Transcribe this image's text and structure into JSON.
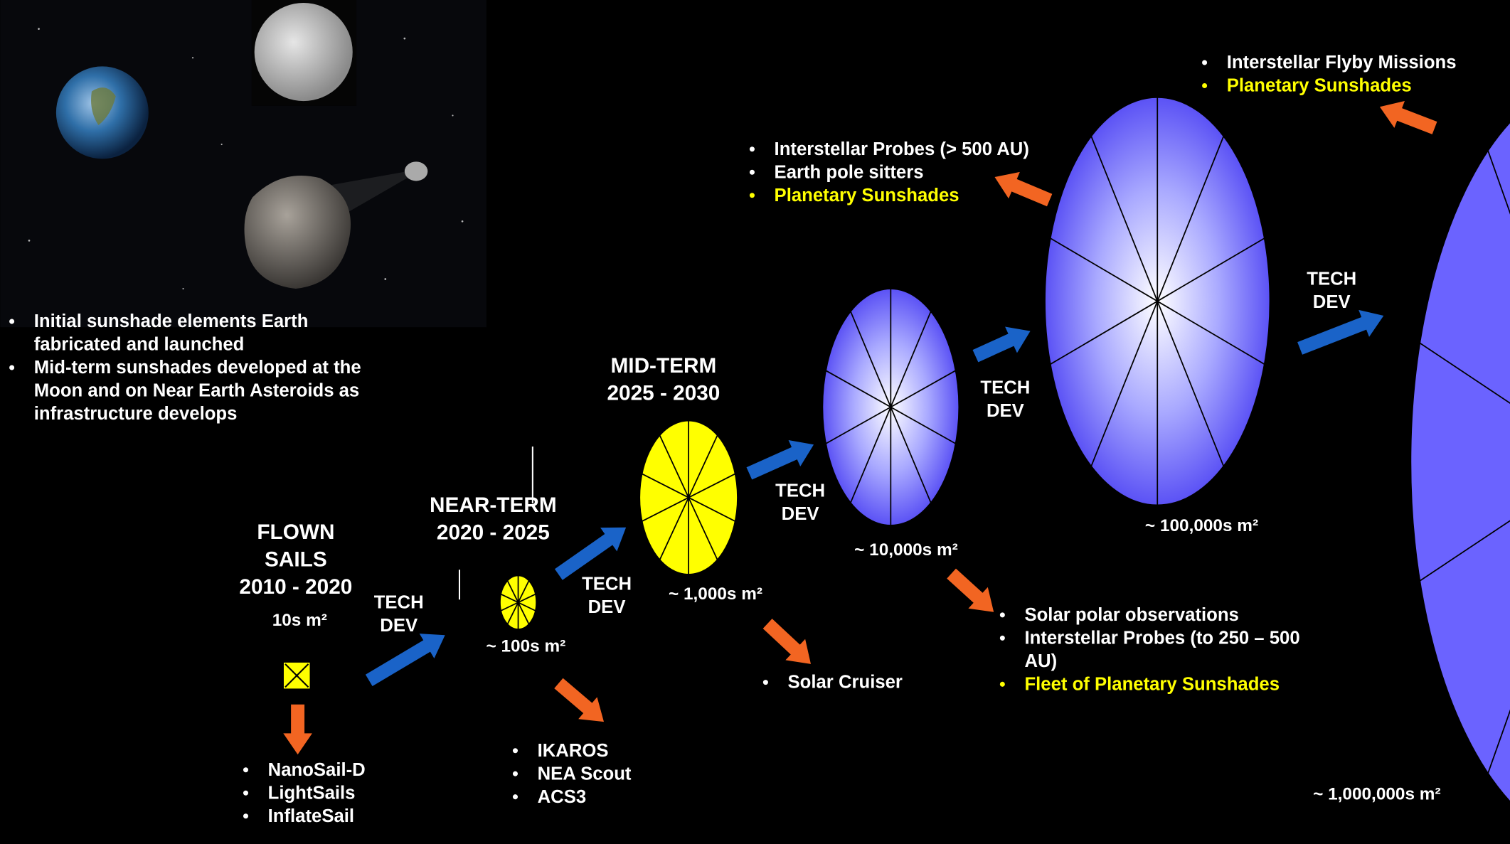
{
  "intro": {
    "items": [
      {
        "lines": [
          "Initial sunshade elements Earth",
          "fabricated and launched"
        ]
      },
      {
        "lines": [
          "Mid-term sunshades developed at the",
          "Moon and on Near Earth Asteroids as",
          "infrastructure develops"
        ]
      }
    ]
  },
  "stages": [
    {
      "heading": [
        "FLOWN",
        "SAILS",
        "2010 - 2020"
      ],
      "area": "10s m²",
      "missions": [
        {
          "lines": [
            "NanoSail-D"
          ]
        },
        {
          "lines": [
            "LightSails"
          ]
        },
        {
          "lines": [
            "InflateSail"
          ]
        }
      ]
    },
    {
      "heading": [
        "NEAR-TERM",
        "2020 - 2025"
      ],
      "area": "~ 100s m²",
      "missions": [
        {
          "lines": [
            "IKAROS"
          ]
        },
        {
          "lines": [
            "NEA Scout"
          ]
        },
        {
          "lines": [
            "ACS3"
          ]
        }
      ]
    },
    {
      "heading": [
        "MID-TERM",
        "2025 - 2030"
      ],
      "area": "~ 1,000s m²",
      "missions": [
        {
          "lines": [
            "Solar Cruiser"
          ]
        }
      ]
    },
    {
      "area": "~ 10,000s m²",
      "missions": [
        {
          "lines": [
            "Solar polar observations"
          ]
        },
        {
          "lines": [
            "Interstellar Probes (to 250 – 500",
            "AU)"
          ]
        },
        {
          "lines": [
            "Fleet of Planetary Sunshades"
          ],
          "color": "#ffff00"
        }
      ]
    },
    {
      "area": "~ 100,000s m²",
      "missions": [
        {
          "lines": [
            "Interstellar Probes (> 500 AU)"
          ]
        },
        {
          "lines": [
            "Earth pole sitters"
          ]
        },
        {
          "lines": [
            "Planetary Sunshades"
          ],
          "color": "#ffff00"
        }
      ]
    },
    {
      "area": "~ 1,000,000s m²",
      "missions": [
        {
          "lines": [
            "Interstellar Flyby Missions"
          ]
        },
        {
          "lines": [
            "Planetary Sunshades"
          ],
          "color": "#ffff00"
        }
      ]
    }
  ],
  "tech_dev": [
    [
      "TECH",
      "DEV"
    ],
    [
      "TECH",
      "DEV"
    ],
    [
      "TECH",
      "DEV"
    ],
    [
      "TECH",
      "DEV"
    ],
    [
      "TECH",
      "DEV"
    ]
  ]
}
